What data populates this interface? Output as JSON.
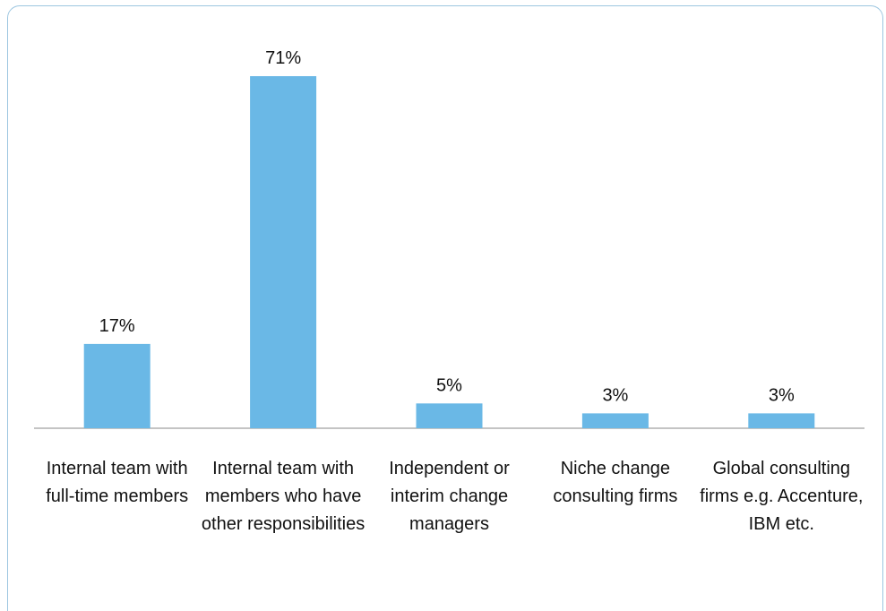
{
  "chart_data": {
    "type": "bar",
    "categories": [
      "Internal team with full-time members",
      "Internal team with members who have other responsibilities",
      "Independent or interim change managers",
      "Niche change consulting firms",
      "Global consulting firms e.g. Accenture, IBM etc."
    ],
    "values": [
      17,
      71,
      5,
      3,
      3
    ],
    "value_labels": [
      "17%",
      "71%",
      "5%",
      "3%",
      "3%"
    ],
    "color": "#6ab8e6"
  }
}
